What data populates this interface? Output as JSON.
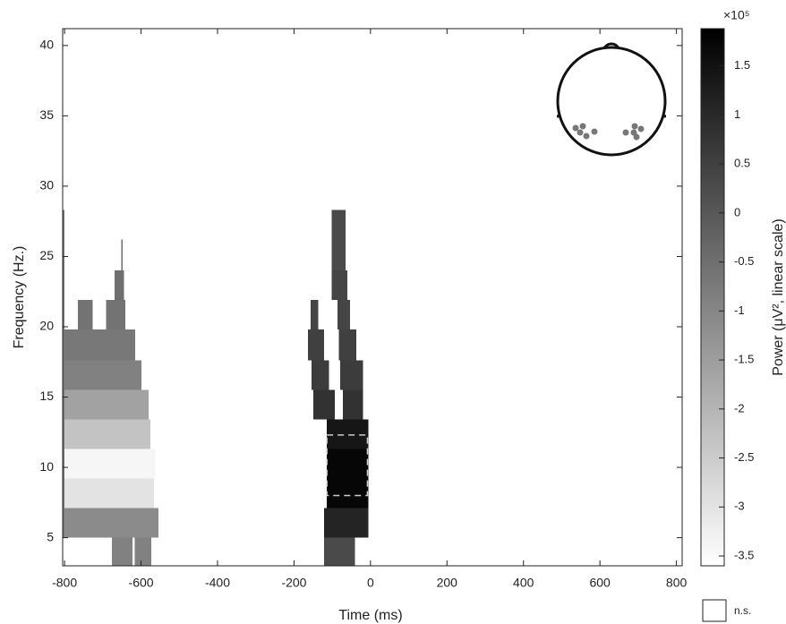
{
  "chart_data": {
    "type": "heatmap",
    "xlabel": "Time (ms)",
    "ylabel": "Frequency (Hz.)",
    "colorbar_label": "Power (μV², linear scale)",
    "colorbar_multiplier": "×10⁵",
    "legend_label": "n.s.",
    "xlim": [
      -805,
      815
    ],
    "ylim": [
      3,
      41.2
    ],
    "xticks": [
      -800,
      -600,
      -400,
      -200,
      0,
      200,
      400,
      600,
      800
    ],
    "yticks": [
      5,
      10,
      15,
      20,
      25,
      30,
      35,
      40
    ],
    "clim": [
      -3.6,
      1.88
    ],
    "cticks": [
      1.5,
      1,
      0.5,
      0,
      -0.5,
      -1,
      -1.5,
      -2,
      -2.5,
      -3,
      -3.5
    ],
    "colormap": [
      "#ffffff",
      "#000000"
    ],
    "roi": {
      "x": [
        -114,
        -8
      ],
      "y": [
        8,
        12.3
      ]
    },
    "cells": [
      {
        "x": [
          -676,
          -622
        ],
        "y": [
          3,
          5
        ],
        "value": -0.9
      },
      {
        "x": [
          -617,
          -573
        ],
        "y": [
          3,
          5
        ],
        "value": -0.9
      },
      {
        "x": [
          -800,
          -554
        ],
        "y": [
          5,
          7.1
        ],
        "value": -1.1
      },
      {
        "x": [
          -800,
          -566
        ],
        "y": [
          7.1,
          9.2
        ],
        "value": -3.0
      },
      {
        "x": [
          -800,
          -563
        ],
        "y": [
          9.2,
          11.3
        ],
        "value": -3.4
      },
      {
        "x": [
          -800,
          -575
        ],
        "y": [
          11.3,
          13.4
        ],
        "value": -2.3
      },
      {
        "x": [
          -800,
          -580
        ],
        "y": [
          13.4,
          15.5
        ],
        "value": -1.6
      },
      {
        "x": [
          -800,
          -599
        ],
        "y": [
          15.5,
          17.6
        ],
        "value": -0.9
      },
      {
        "x": [
          -800,
          -615
        ],
        "y": [
          17.6,
          19.8
        ],
        "value": -0.7
      },
      {
        "x": [
          -765,
          -727
        ],
        "y": [
          19.8,
          21.9
        ],
        "value": -0.6
      },
      {
        "x": [
          -692,
          -641
        ],
        "y": [
          19.8,
          21.9
        ],
        "value": -0.6
      },
      {
        "x": [
          -669,
          -645
        ],
        "y": [
          21.9,
          24
        ],
        "value": -0.5
      },
      {
        "x": [
          -652,
          -648
        ],
        "y": [
          24,
          26.2
        ],
        "value": -0.5
      },
      {
        "x": [
          -805,
          -800
        ],
        "y": [
          5,
          28.3
        ],
        "value": -0.7
      },
      {
        "x": [
          -121,
          -41
        ],
        "y": [
          3,
          5
        ],
        "value": 0.3
      },
      {
        "x": [
          -121,
          -6
        ],
        "y": [
          5,
          7.1
        ],
        "value": 1.1
      },
      {
        "x": [
          -114,
          -6
        ],
        "y": [
          7.1,
          11.3
        ],
        "value": 1.75
      },
      {
        "x": [
          -114,
          -6
        ],
        "y": [
          11.3,
          13.4
        ],
        "value": 1.4
      },
      {
        "x": [
          -149,
          -93
        ],
        "y": [
          13.4,
          15.5
        ],
        "value": 0.8
      },
      {
        "x": [
          -72,
          -20
        ],
        "y": [
          13.4,
          15.5
        ],
        "value": 0.8
      },
      {
        "x": [
          -154,
          -109
        ],
        "y": [
          15.5,
          17.6
        ],
        "value": 0.6
      },
      {
        "x": [
          -79,
          -20
        ],
        "y": [
          15.5,
          17.6
        ],
        "value": 0.6
      },
      {
        "x": [
          -163,
          -121
        ],
        "y": [
          17.6,
          19.8
        ],
        "value": 0.5
      },
      {
        "x": [
          -83,
          -37
        ],
        "y": [
          17.6,
          19.8
        ],
        "value": 0.5
      },
      {
        "x": [
          -156,
          -137
        ],
        "y": [
          19.8,
          21.9
        ],
        "value": 0.4
      },
      {
        "x": [
          -86,
          -53
        ],
        "y": [
          19.8,
          21.9
        ],
        "value": 0.4
      },
      {
        "x": [
          -102,
          -60
        ],
        "y": [
          21.9,
          24
        ],
        "value": 0.4
      },
      {
        "x": [
          -102,
          -65
        ],
        "y": [
          24,
          26.2
        ],
        "value": 0.3
      },
      {
        "x": [
          -102,
          -65
        ],
        "y": [
          26.2,
          28.3
        ],
        "value": 0.3
      }
    ]
  }
}
